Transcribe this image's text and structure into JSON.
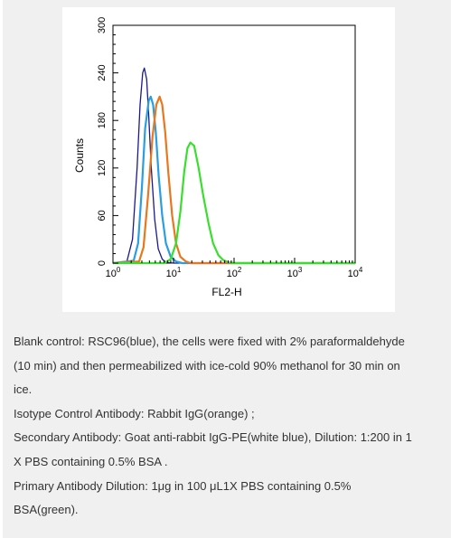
{
  "chart_data": {
    "type": "line",
    "xscale": "log",
    "xlim": [
      1,
      10000
    ],
    "ylim": [
      0,
      300
    ],
    "xlabel": "FL2-H",
    "ylabel": "Counts",
    "y_ticks": [
      "0",
      "60",
      "120",
      "180",
      "240",
      "300"
    ],
    "x_ticks": [
      {
        "base": "10",
        "exp": "0",
        "value": 1
      },
      {
        "base": "10",
        "exp": "1",
        "value": 10
      },
      {
        "base": "10",
        "exp": "2",
        "value": 100
      },
      {
        "base": "10",
        "exp": "3",
        "value": 1000
      },
      {
        "base": "10",
        "exp": "4",
        "value": 10000
      }
    ],
    "series": [
      {
        "color": "#1a1a8c",
        "width": 1.3,
        "x": [
          1,
          1.7,
          2.1,
          2.5,
          2.8,
          3.1,
          3.3,
          3.6,
          3.9,
          4.3,
          4.9,
          5.6,
          6.5,
          7.5,
          10,
          10000
        ],
        "y": [
          0,
          2,
          30,
          120,
          200,
          240,
          246,
          232,
          185,
          120,
          55,
          18,
          5,
          1,
          0,
          0
        ]
      },
      {
        "color": "#2a9ee0",
        "width": 2.2,
        "x": [
          1,
          2.2,
          2.6,
          3.0,
          3.4,
          3.9,
          4.2,
          4.6,
          5.1,
          5.7,
          6.5,
          7.5,
          9.0,
          11,
          14,
          10000
        ],
        "y": [
          0,
          3,
          25,
          95,
          170,
          205,
          210,
          200,
          165,
          110,
          60,
          25,
          8,
          2,
          0,
          0
        ]
      },
      {
        "color": "#e8771e",
        "width": 2.2,
        "x": [
          1,
          2.7,
          3.2,
          3.8,
          4.5,
          5.2,
          5.9,
          6.5,
          7.3,
          8.2,
          9.5,
          11,
          13,
          16,
          19,
          10000
        ],
        "y": [
          0,
          2,
          20,
          85,
          160,
          200,
          210,
          200,
          165,
          115,
          60,
          25,
          8,
          2,
          0,
          0
        ]
      },
      {
        "color": "#3ade2e",
        "width": 2.2,
        "x": [
          1,
          7,
          9,
          11,
          13,
          15,
          17,
          19,
          22,
          26,
          31,
          38,
          45,
          55,
          66,
          80,
          100,
          10000
        ],
        "y": [
          0,
          0,
          5,
          25,
          65,
          115,
          145,
          152,
          148,
          120,
          85,
          50,
          25,
          10,
          4,
          1,
          0,
          0
        ]
      }
    ]
  },
  "caption": {
    "lines": [
      "Blank control: RSC96(blue), the cells were fixed with 2% paraformaldehyde",
      "(10 min) and then permeabilized with ice-cold 90% methanol for 30 min on",
      "ice.",
      "Isotype Control Antibody: Rabbit IgG(orange) ;",
      "Secondary Antibody: Goat anti-rabbit IgG-PE(white blue), Dilution: 1:200 in 1",
      "X PBS containing 0.5% BSA .",
      "Primary Antibody Dilution: 1μg in 100 μL1X PBS containing 0.5%",
      "BSA(green)."
    ]
  }
}
